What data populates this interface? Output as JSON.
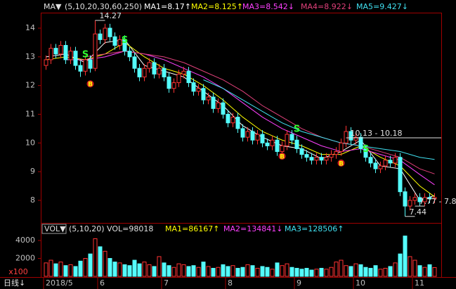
{
  "chart_data": [
    {
      "type": "candlestick",
      "header": {
        "menu": "MA▼",
        "params": "(5,10,20,30,60,250)"
      },
      "x_labels": [
        "2018/5",
        "6",
        "7",
        "8",
        "9",
        "10",
        "11"
      ],
      "x_label_index": [
        0,
        11,
        24,
        37,
        51,
        63,
        75
      ],
      "period": "日线↓",
      "ylim": [
        7.19,
        14.54
      ],
      "yticks": [
        8,
        9,
        10,
        11,
        12,
        13,
        14
      ],
      "up_color": "#ff3232",
      "down_color": "#54fcfc",
      "open": [
        12.7,
        12.9,
        13.3,
        13.1,
        13.4,
        12.9,
        13.2,
        12.7,
        12.5,
        12.9,
        12.6,
        13.8,
        13.6,
        14.0,
        13.7,
        13.4,
        13.6,
        13.2,
        13.0,
        12.6,
        12.3,
        12.6,
        12.8,
        12.4,
        12.6,
        12.3,
        11.9,
        12.1,
        12.4,
        12.5,
        12.1,
        11.8,
        11.9,
        11.5,
        11.6,
        11.2,
        11.4,
        11.0,
        10.7,
        10.9,
        10.5,
        10.2,
        10.4,
        10.1,
        10.3,
        10.0,
        9.9,
        10.1,
        9.7,
        9.9,
        10.3,
        10.1,
        9.8,
        9.6,
        9.5,
        9.4,
        9.5,
        9.4,
        9.5,
        9.6,
        9.7,
        10.0,
        10.4,
        10.1,
        10.2,
        9.8,
        9.5,
        9.3,
        9.1,
        9.2,
        9.4,
        9.3,
        9.5,
        8.3,
        7.8,
        8.0,
        8.1,
        7.95,
        8.1,
        8.05
      ],
      "high": [
        13.05,
        13.45,
        13.45,
        13.55,
        13.55,
        13.35,
        13.35,
        12.85,
        13.05,
        13.05,
        14.27,
        13.95,
        14.15,
        14.15,
        13.85,
        13.75,
        13.75,
        13.35,
        13.15,
        12.75,
        12.75,
        12.95,
        12.95,
        12.75,
        12.75,
        12.45,
        12.25,
        12.55,
        12.65,
        12.65,
        12.25,
        12.05,
        12.05,
        11.75,
        11.75,
        11.55,
        11.55,
        11.15,
        11.05,
        11.05,
        10.65,
        10.55,
        10.55,
        10.45,
        10.45,
        10.15,
        10.25,
        10.25,
        10.05,
        10.45,
        10.45,
        10.25,
        9.95,
        9.75,
        9.65,
        9.65,
        9.65,
        9.65,
        9.75,
        9.85,
        10.15,
        10.6,
        10.55,
        10.35,
        10.35,
        9.95,
        9.65,
        9.45,
        9.35,
        9.55,
        9.55,
        9.65,
        9.65,
        8.45,
        8.15,
        8.25,
        8.25,
        8.25,
        8.25,
        8.25
      ],
      "low": [
        12.55,
        12.75,
        12.95,
        12.95,
        12.75,
        12.75,
        12.55,
        12.3,
        12.35,
        12.45,
        12.5,
        13.45,
        13.45,
        13.55,
        13.25,
        13.25,
        13.05,
        12.85,
        12.45,
        12.15,
        12.15,
        12.45,
        12.25,
        12.25,
        12.15,
        11.75,
        11.75,
        11.95,
        12.25,
        11.95,
        11.65,
        11.65,
        11.35,
        11.35,
        11.05,
        11.05,
        10.85,
        10.55,
        10.55,
        10.35,
        10.05,
        10.05,
        9.95,
        9.95,
        9.85,
        9.75,
        9.75,
        9.55,
        9.55,
        9.75,
        9.95,
        9.65,
        9.45,
        9.35,
        9.25,
        9.25,
        9.25,
        9.25,
        9.35,
        9.45,
        9.55,
        9.85,
        9.95,
        9.95,
        9.65,
        9.35,
        9.15,
        8.95,
        8.95,
        9.05,
        9.15,
        9.15,
        8.15,
        7.44,
        7.65,
        7.85,
        7.8,
        7.8,
        7.9,
        7.9
      ],
      "close": [
        12.9,
        13.3,
        13.1,
        13.4,
        12.9,
        13.2,
        12.7,
        12.5,
        12.9,
        12.6,
        13.8,
        13.6,
        14.0,
        13.7,
        13.4,
        13.6,
        13.2,
        13.0,
        12.6,
        12.3,
        12.6,
        12.8,
        12.4,
        12.6,
        12.3,
        11.9,
        12.1,
        12.4,
        12.5,
        12.1,
        11.8,
        11.9,
        11.5,
        11.6,
        11.2,
        11.4,
        11.0,
        10.7,
        10.9,
        10.5,
        10.2,
        10.4,
        10.1,
        10.3,
        10.0,
        9.9,
        10.1,
        9.7,
        9.9,
        10.3,
        10.1,
        9.8,
        9.6,
        9.5,
        9.4,
        9.5,
        9.4,
        9.5,
        9.6,
        9.7,
        10.0,
        10.4,
        10.1,
        10.2,
        9.8,
        9.5,
        9.3,
        9.1,
        9.2,
        9.4,
        9.3,
        9.5,
        8.3,
        7.8,
        8.0,
        8.1,
        7.95,
        8.1,
        8.05,
        8.1
      ],
      "ma_x": [
        0,
        4,
        8,
        12,
        16,
        20,
        24,
        28,
        32,
        36,
        40,
        44,
        48,
        52,
        56,
        60,
        64,
        68,
        72,
        76,
        79
      ],
      "series": [
        {
          "name": "MA1",
          "label": "MA1=8.17↑",
          "color": "#ffffff",
          "values": [
            13.0,
            13.1,
            12.8,
            13.5,
            13.6,
            12.7,
            12.5,
            12.3,
            11.8,
            11.3,
            10.6,
            10.2,
            9.9,
            9.8,
            9.45,
            9.7,
            10.1,
            9.2,
            9.1,
            8.0,
            8.17
          ]
        },
        {
          "name": "MA2",
          "label": "MA2=8.125↑",
          "color": "#ffff00",
          "values": [
            12.9,
            13.0,
            12.9,
            13.1,
            13.5,
            13.0,
            12.6,
            12.4,
            12.0,
            11.5,
            10.9,
            10.4,
            10.1,
            9.9,
            9.6,
            9.6,
            9.9,
            9.5,
            9.2,
            8.5,
            8.125
          ]
        },
        {
          "name": "MA3",
          "label": "MA3=8.542↓",
          "color": "#ff40ff",
          "values": [
            null,
            12.9,
            12.9,
            13.0,
            13.2,
            13.1,
            12.9,
            12.6,
            12.3,
            11.9,
            11.4,
            10.9,
            10.5,
            10.2,
            9.9,
            9.7,
            9.8,
            9.6,
            9.4,
            8.9,
            8.542
          ]
        },
        {
          "name": "MA4",
          "label": "MA4=8.922↓",
          "color": "#e0407a",
          "values": [
            null,
            null,
            13.0,
            13.1,
            13.2,
            13.1,
            13.0,
            12.8,
            12.5,
            12.2,
            11.8,
            11.3,
            10.9,
            10.5,
            10.2,
            10.0,
            9.9,
            9.7,
            9.5,
            9.1,
            8.922
          ]
        },
        {
          "name": "MA5",
          "label": "MA5=9.427↓",
          "color": "#40e0f0",
          "values": [
            null,
            null,
            null,
            null,
            null,
            null,
            null,
            null,
            12.2,
            11.9,
            11.5,
            11.1,
            10.7,
            10.4,
            10.2,
            10.0,
            9.9,
            9.8,
            9.7,
            9.5,
            9.427
          ]
        }
      ],
      "annotations": [
        {
          "label": "14.27",
          "index": 10,
          "value": 14.27
        },
        {
          "label": "10.13 - 10.18",
          "index": 61,
          "value": 10.18
        },
        {
          "label": "7.77 - 7.80",
          "index": 75,
          "value": 7.8
        },
        {
          "label": "7.44",
          "index": 73,
          "value": 7.44
        }
      ],
      "signals": [
        {
          "label": "S",
          "index": 8,
          "value": 13.1
        },
        {
          "label": "B",
          "index": 9,
          "value": 12.06
        },
        {
          "label": "S",
          "index": 16,
          "value": 13.6
        },
        {
          "label": "B",
          "index": 48,
          "value": 9.54
        },
        {
          "label": "S",
          "index": 51,
          "value": 10.5
        },
        {
          "label": "B",
          "index": 60,
          "value": 9.3
        },
        {
          "label": "S",
          "index": 65,
          "value": 9.8
        }
      ]
    },
    {
      "type": "bar",
      "header": {
        "menu": "VOL▼",
        "params": "(5,10,20)",
        "labels": [
          "VOL=98018",
          "MA1=86167↑",
          "MA2=134841↓",
          "MA3=128506↑"
        ]
      },
      "unit": "x100",
      "ylim": [
        0,
        4549
      ],
      "yticks": [
        2000,
        4000
      ],
      "values": [
        1500,
        1800,
        1400,
        1600,
        1200,
        1300,
        1100,
        1700,
        2000,
        2500,
        4200,
        3300,
        2800,
        2000,
        1600,
        1500,
        1300,
        1200,
        1800,
        1400,
        1600,
        1300,
        1100,
        2200,
        1500,
        1200,
        1000,
        1400,
        1300,
        1100,
        1200,
        1000,
        1600,
        1100,
        900,
        1000,
        1300,
        1100,
        1200,
        900,
        1000,
        1300,
        1200,
        900,
        1100,
        1000,
        800,
        1500,
        1200,
        1400,
        1000,
        900,
        800,
        900,
        700,
        800,
        900,
        800,
        1000,
        1600,
        1800,
        1200,
        1100,
        1400,
        1300,
        1000,
        900,
        1200,
        800,
        900,
        1100,
        1500,
        2500,
        4500,
        2200,
        1800,
        1200,
        1000,
        1300,
        980
      ]
    }
  ]
}
